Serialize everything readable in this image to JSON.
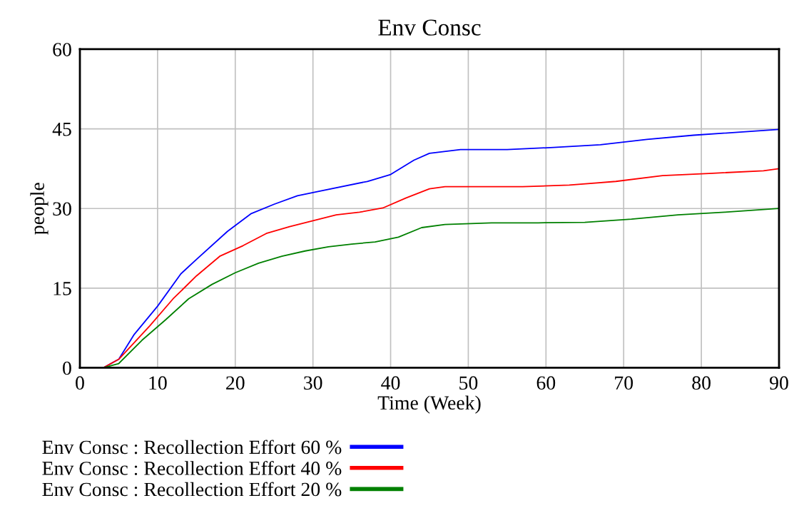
{
  "chart_data": {
    "type": "line",
    "title": "Env Consc",
    "xlabel": "Time (Week)",
    "ylabel": "people",
    "xlim": [
      0,
      90
    ],
    "xticks": [
      0,
      10,
      20,
      30,
      40,
      50,
      60,
      70,
      80,
      90
    ],
    "ylim": [
      0,
      60
    ],
    "yticks": [
      0,
      15,
      30,
      45,
      60
    ],
    "grid": true,
    "legend": "bottom",
    "series": [
      {
        "name": "Env Consc : Recollection Effort 60 %",
        "color": "#0000ff",
        "x": [
          0,
          3,
          5,
          7,
          10,
          13,
          15,
          19,
          22,
          25,
          28,
          31,
          37,
          40,
          43,
          45,
          49,
          55,
          61,
          67,
          73,
          79,
          86,
          90
        ],
        "values": [
          0,
          0,
          1.6,
          6.3,
          11.6,
          17.7,
          20.4,
          25.7,
          29,
          30.8,
          32.4,
          33.3,
          35.1,
          36.4,
          39.1,
          40.4,
          41.1,
          41.1,
          41.5,
          42,
          43,
          43.8,
          44.5,
          44.9
        ]
      },
      {
        "name": "Env Consc : Recollection Effort 40 %",
        "color": "#ff0000",
        "x": [
          0,
          3,
          5,
          9,
          12,
          15,
          18,
          21,
          24,
          27,
          30,
          33,
          36,
          39,
          42,
          45,
          47,
          51,
          57,
          63,
          69,
          75,
          81,
          88,
          90
        ],
        "values": [
          0,
          0,
          1.6,
          7.9,
          13,
          17.3,
          21,
          23,
          25.3,
          26.6,
          27.7,
          28.8,
          29.3,
          30.1,
          32,
          33.7,
          34.1,
          34.1,
          34.1,
          34.4,
          35.1,
          36.2,
          36.6,
          37.1,
          37.5
        ]
      },
      {
        "name": "Env Consc : Recollection Effort 20 %",
        "color": "#008000",
        "x": [
          0,
          3,
          5,
          8,
          11,
          14,
          17,
          20,
          23,
          26,
          29,
          32,
          35,
          38,
          41,
          44,
          47,
          53,
          59,
          65,
          71,
          77,
          83,
          90
        ],
        "values": [
          0,
          0,
          0.8,
          5.2,
          9,
          13,
          15.7,
          17.9,
          19.7,
          21,
          22,
          22.8,
          23.3,
          23.7,
          24.6,
          26.4,
          27,
          27.3,
          27.3,
          27.4,
          28,
          28.8,
          29.3,
          30
        ]
      }
    ]
  }
}
